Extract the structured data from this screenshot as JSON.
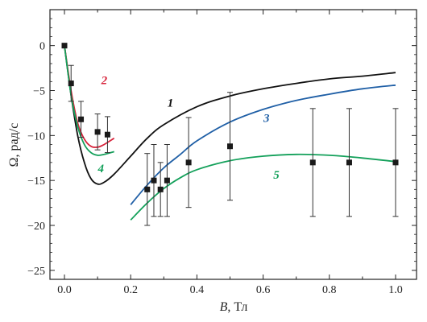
{
  "chart_data": {
    "type": "line",
    "xlabel": {
      "var": "B",
      "unit": ", Тл"
    },
    "ylabel": {
      "var": "Ω",
      "unit": ", рад/с"
    },
    "xlim": [
      0.0,
      1.0
    ],
    "ylim": [
      -26,
      4
    ],
    "x_ticks": [
      0.0,
      0.2,
      0.4,
      0.6,
      0.8,
      1.0
    ],
    "x_tick_labels": [
      "0.0",
      "0.2",
      "0.4",
      "0.6",
      "0.8",
      "1.0"
    ],
    "y_ticks": [
      0,
      -5,
      -10,
      -15,
      -20,
      -25
    ],
    "y_tick_labels": [
      "0",
      "−5",
      "−10",
      "−15",
      "−20",
      "−25"
    ],
    "grid": false,
    "series": [
      {
        "name": "1",
        "color": "#111111",
        "x": [
          0.0,
          0.02,
          0.04,
          0.06,
          0.08,
          0.1,
          0.12,
          0.15,
          0.2,
          0.25,
          0.3,
          0.4,
          0.5,
          0.6,
          0.7,
          0.8,
          0.9,
          1.0
        ],
        "y": [
          0.0,
          -5.5,
          -10.0,
          -13.0,
          -14.8,
          -15.4,
          -15.2,
          -14.3,
          -12.3,
          -10.3,
          -8.8,
          -6.8,
          -5.6,
          -4.8,
          -4.2,
          -3.7,
          -3.4,
          -3.0
        ]
      },
      {
        "name": "2",
        "color": "#d7263d",
        "x": [
          0.0,
          0.02,
          0.04,
          0.06,
          0.08,
          0.1,
          0.12,
          0.15
        ],
        "y": [
          0.0,
          -5.0,
          -8.6,
          -10.4,
          -11.2,
          -11.3,
          -11.0,
          -10.3
        ]
      },
      {
        "name": "3",
        "color": "#1f5fa6",
        "x": [
          0.2,
          0.25,
          0.3,
          0.35,
          0.4,
          0.5,
          0.6,
          0.7,
          0.8,
          0.9,
          1.0
        ],
        "y": [
          -17.7,
          -15.5,
          -13.6,
          -12.1,
          -10.6,
          -8.5,
          -7.1,
          -6.1,
          -5.4,
          -4.8,
          -4.4
        ]
      },
      {
        "name": "4",
        "color": "#13a05a",
        "x": [
          0.0,
          0.02,
          0.04,
          0.06,
          0.08,
          0.1,
          0.12,
          0.15
        ],
        "y": [
          0.0,
          -5.5,
          -9.0,
          -11.0,
          -11.9,
          -12.2,
          -12.1,
          -11.8
        ]
      },
      {
        "name": "5",
        "color": "#13a05a",
        "x": [
          0.2,
          0.25,
          0.3,
          0.35,
          0.4,
          0.5,
          0.6,
          0.7,
          0.8,
          0.9,
          1.0
        ],
        "y": [
          -19.4,
          -17.5,
          -15.9,
          -14.7,
          -13.8,
          -12.8,
          -12.3,
          -12.1,
          -12.2,
          -12.5,
          -12.9
        ]
      }
    ],
    "measurements": {
      "x": [
        0.0,
        0.02,
        0.05,
        0.1,
        0.13,
        0.25,
        0.27,
        0.29,
        0.31,
        0.375,
        0.5,
        0.75,
        0.86,
        1.0
      ],
      "y": [
        0.0,
        -4.2,
        -8.2,
        -9.6,
        -9.9,
        -16.0,
        -15.0,
        -16.0,
        -15.0,
        -13.0,
        -11.2,
        -13.0,
        -13.0,
        -13.0
      ],
      "err": [
        0,
        2.0,
        2.0,
        2.0,
        2.0,
        4.0,
        4.0,
        3.0,
        4.0,
        5.0,
        6.0,
        6.0,
        6.0,
        6.0
      ]
    },
    "curve_labels": [
      {
        "text": "1",
        "color": "#111111",
        "x": 0.32,
        "y": -6.8
      },
      {
        "text": "2",
        "color": "#d7263d",
        "x": 0.12,
        "y": -4.3
      },
      {
        "text": "3",
        "color": "#1f5fa6",
        "x": 0.61,
        "y": -8.5
      },
      {
        "text": "4",
        "color": "#13a05a",
        "x": 0.11,
        "y": -14.1
      },
      {
        "text": "5",
        "color": "#13a05a",
        "x": 0.64,
        "y": -14.8
      }
    ]
  }
}
